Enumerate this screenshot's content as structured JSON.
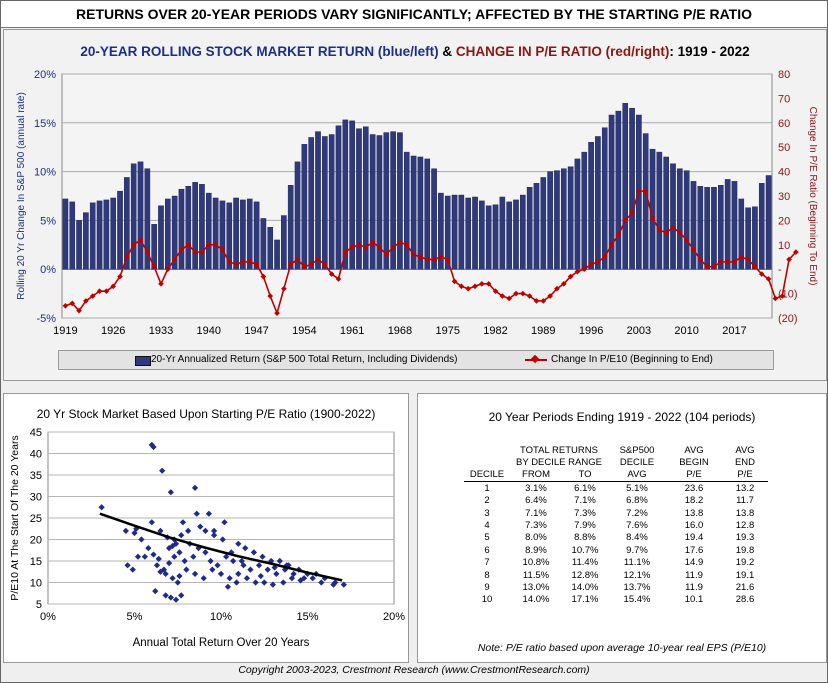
{
  "banner": "RETURNS OVER 20-YEAR PERIODS VARY SIGNIFICANTLY; AFFECTED BY THE STARTING P/E RATIO",
  "top_title": {
    "part1": "20-YEAR ROLLING STOCK MARKET RETURN (blue/left)",
    "amp": " & ",
    "part2": "CHANGE IN P/E RATIO (red/right)",
    "part3": ": 1919 - 2022"
  },
  "colors": {
    "bar": "#2f3a7e",
    "line": "#c00000",
    "scatter": "#1f2a8a",
    "trend": "#000000",
    "title_blue": "#1d2e8a",
    "title_red": "#8e1414"
  },
  "legend": {
    "bar_label": "20-Yr Annualized Return (S&P 500 Total Return, Including Dividends)",
    "line_label": "Change In P/E10 (Beginning to End)"
  },
  "chart_data": [
    {
      "type": "bar+line",
      "title": "20-YEAR ROLLING STOCK MARKET RETURN (blue/left) & CHANGE IN P/E RATIO (red/right): 1919 - 2022",
      "ylabel": "Rolling 20 Yr Change In S&P 500 (annual rate)",
      "y2label": "Change In P/E Ratio (Beginning To End)",
      "ylim": [
        -5,
        20
      ],
      "y2lim": [
        -20,
        80
      ],
      "yticks": [
        "-5%",
        "0%",
        "5%",
        "10%",
        "15%",
        "20%"
      ],
      "y2ticks": [
        "(20)",
        "(10)",
        "-",
        "10",
        "20",
        "30",
        "40",
        "50",
        "60",
        "70",
        "80"
      ],
      "xticks": [
        "1919",
        "1926",
        "1933",
        "1940",
        "1947",
        "1954",
        "1961",
        "1968",
        "1975",
        "1982",
        "1989",
        "1996",
        "2003",
        "2010",
        "2017"
      ],
      "x_start": 1919,
      "x_end": 2022,
      "series": [
        {
          "name": "20-Yr Annualized Return (S&P 500 Total Return, Including Dividends)",
          "kind": "bar",
          "values": [
            7.2,
            6.9,
            5.0,
            5.8,
            6.8,
            7.0,
            7.1,
            7.3,
            8.0,
            9.4,
            10.8,
            11.0,
            10.3,
            4.6,
            6.5,
            7.2,
            7.5,
            8.2,
            8.5,
            8.9,
            8.7,
            7.8,
            7.3,
            7.0,
            6.8,
            7.3,
            7.1,
            7.2,
            6.9,
            5.2,
            4.3,
            3.0,
            5.5,
            8.6,
            11.0,
            12.8,
            13.5,
            14.1,
            13.6,
            13.8,
            14.7,
            15.3,
            15.2,
            14.4,
            14.6,
            13.8,
            13.7,
            14.0,
            14.1,
            14.0,
            12.0,
            11.6,
            11.5,
            11.3,
            10.3,
            7.8,
            7.5,
            7.6,
            7.6,
            7.3,
            7.4,
            7.0,
            6.5,
            6.6,
            7.4,
            6.9,
            7.1,
            7.6,
            8.4,
            8.8,
            9.4,
            10.0,
            10.1,
            10.3,
            10.5,
            11.3,
            12.0,
            13.0,
            13.6,
            14.5,
            15.8,
            16.2,
            17.0,
            16.5,
            15.8,
            13.9,
            12.3,
            12.0,
            11.5,
            10.8,
            10.3,
            10.1,
            9.0,
            8.5,
            8.4,
            8.4,
            8.6,
            9.2,
            9.0,
            7.2,
            6.3,
            6.4,
            8.8,
            9.6
          ]
        },
        {
          "name": "Change In P/E10 (Beginning to End)",
          "kind": "line",
          "axis": "right",
          "values": [
            -15,
            -14,
            -17,
            -13,
            -11,
            -9,
            -9,
            -7,
            -3,
            5,
            10,
            12,
            7,
            1,
            -6,
            0,
            4,
            8,
            10,
            7,
            7,
            10,
            10,
            8,
            3,
            2,
            3,
            3,
            2,
            -3,
            -11,
            -18,
            -8,
            2,
            4,
            1,
            2,
            4,
            2,
            -2,
            -4,
            7,
            9,
            10,
            9,
            11,
            9,
            6,
            9,
            11,
            10,
            6,
            5,
            4,
            4,
            5,
            4,
            -5,
            -7,
            -8,
            -7,
            -6,
            -6,
            -9,
            -11,
            -12,
            -10,
            -10,
            -11,
            -13,
            -13,
            -11,
            -8,
            -6,
            -3,
            -1,
            0,
            2,
            3,
            5,
            10,
            14,
            20,
            23,
            32,
            32,
            21,
            16,
            15,
            17,
            15,
            12,
            8,
            4,
            1,
            1,
            3,
            3,
            3,
            5,
            4,
            1,
            -2,
            -4,
            -12,
            -11,
            4,
            7
          ]
        }
      ]
    },
    {
      "type": "scatter",
      "title": "20 Yr Stock Market Based Upon Starting P/E Ratio (1900-2022)",
      "xlabel": "Annual Total Return Over 20 Years",
      "ylabel": "P/E10 At The Start Of The 20 Years",
      "xlim": [
        0,
        20
      ],
      "ylim": [
        5,
        45
      ],
      "xticks": [
        "0%",
        "5%",
        "10%",
        "15%",
        "20%"
      ],
      "yticks": [
        "5",
        "10",
        "15",
        "20",
        "25",
        "30",
        "35",
        "40",
        "45"
      ],
      "points": [
        [
          3.1,
          27.5
        ],
        [
          4.5,
          22
        ],
        [
          5.0,
          21.5
        ],
        [
          5.4,
          20
        ],
        [
          5.1,
          22.5
        ],
        [
          6.0,
          42
        ],
        [
          6.1,
          41.5
        ],
        [
          6.6,
          36
        ],
        [
          7.1,
          31
        ],
        [
          8.5,
          32
        ],
        [
          9.3,
          26
        ],
        [
          6.0,
          24
        ],
        [
          6.5,
          22
        ],
        [
          7.3,
          20
        ],
        [
          7.0,
          18
        ],
        [
          7.7,
          21
        ],
        [
          8.2,
          19
        ],
        [
          8.8,
          23
        ],
        [
          9.1,
          22
        ],
        [
          9.6,
          21
        ],
        [
          10.1,
          20
        ],
        [
          10.6,
          17
        ],
        [
          11.0,
          19
        ],
        [
          11.4,
          18
        ],
        [
          11.9,
          17
        ],
        [
          12.4,
          16
        ],
        [
          12.9,
          15
        ],
        [
          13.4,
          15
        ],
        [
          13.9,
          14
        ],
        [
          14.5,
          13
        ],
        [
          15.0,
          12
        ],
        [
          15.5,
          12
        ],
        [
          16.0,
          11
        ],
        [
          16.6,
          10
        ],
        [
          17.1,
          9.5
        ],
        [
          4.6,
          14
        ],
        [
          5.2,
          16
        ],
        [
          6.3,
          14
        ],
        [
          6.8,
          12
        ],
        [
          7.2,
          11
        ],
        [
          7.5,
          10
        ],
        [
          8.0,
          13
        ],
        [
          8.5,
          12
        ],
        [
          9.0,
          11
        ],
        [
          9.5,
          13
        ],
        [
          10.0,
          12
        ],
        [
          10.5,
          11
        ],
        [
          11.0,
          12
        ],
        [
          11.5,
          11
        ],
        [
          12.0,
          10
        ],
        [
          12.5,
          10
        ],
        [
          13.0,
          9.5
        ],
        [
          13.6,
          10
        ],
        [
          14.1,
          11
        ],
        [
          14.6,
          10.5
        ],
        [
          6.2,
          8
        ],
        [
          6.8,
          7
        ],
        [
          7.1,
          6.5
        ],
        [
          7.4,
          6
        ],
        [
          7.7,
          7
        ],
        [
          5.8,
          18
        ],
        [
          6.1,
          16.5
        ],
        [
          6.4,
          15.5
        ],
        [
          6.7,
          13
        ],
        [
          7.0,
          14.5
        ],
        [
          7.3,
          16
        ],
        [
          7.6,
          17
        ],
        [
          7.9,
          15
        ],
        [
          8.4,
          16
        ],
        [
          8.7,
          18
        ],
        [
          9.1,
          17
        ],
        [
          9.4,
          15
        ],
        [
          9.8,
          14
        ],
        [
          10.3,
          16
        ],
        [
          10.7,
          15
        ],
        [
          11.3,
          14
        ],
        [
          11.7,
          13
        ],
        [
          12.2,
          14
        ],
        [
          12.7,
          13
        ],
        [
          13.2,
          12
        ],
        [
          13.7,
          13
        ],
        [
          14.2,
          12
        ],
        [
          14.8,
          11
        ],
        [
          15.3,
          11
        ],
        [
          15.8,
          10
        ],
        [
          16.5,
          9.5
        ],
        [
          10.4,
          9
        ],
        [
          10.9,
          10
        ],
        [
          8.6,
          26
        ],
        [
          9.6,
          22
        ],
        [
          10.2,
          24
        ],
        [
          7.8,
          24
        ],
        [
          7.2,
          18.5
        ],
        [
          7.4,
          19
        ],
        [
          8.1,
          22
        ],
        [
          11.2,
          15
        ],
        [
          12.3,
          11.5
        ],
        [
          13.1,
          13.5
        ],
        [
          6.9,
          20.5
        ],
        [
          7.6,
          11.5
        ],
        [
          6.5,
          12.5
        ],
        [
          5.6,
          16
        ],
        [
          4.9,
          13
        ],
        [
          13.8,
          14
        ]
      ],
      "trend": [
        [
          3,
          26
        ],
        [
          5,
          23.2
        ],
        [
          7,
          20.5
        ],
        [
          9,
          18.2
        ],
        [
          11,
          16.1
        ],
        [
          13,
          14.3
        ],
        [
          15,
          12.3
        ],
        [
          17,
          10.5
        ]
      ]
    }
  ],
  "table": {
    "title": "20 Year Periods Ending 1919 - 2022 (104 periods)",
    "hdr_total_returns": "TOTAL RETURNS",
    "hdr_by_decile_range": "BY DECILE RANGE",
    "hdr_sp500": "S&P500",
    "hdr_decile2": "DECILE",
    "hdr_avg1": "AVG",
    "hdr_begin": "BEGIN",
    "hdr_avg2": "AVG",
    "hdr_end": "END",
    "col_decile": "DECILE",
    "col_from": "FROM",
    "col_to": "TO",
    "col_avg": "AVG",
    "col_pe1": "P/E",
    "col_pe2": "P/E",
    "rows": [
      [
        "1",
        "3.1%",
        "6.1%",
        "5.1%",
        "23.6",
        "13.2"
      ],
      [
        "2",
        "6.4%",
        "7.1%",
        "6.8%",
        "18.2",
        "11.7"
      ],
      [
        "3",
        "7.1%",
        "7.3%",
        "7.2%",
        "13.8",
        "13.8"
      ],
      [
        "4",
        "7.3%",
        "7.9%",
        "7.6%",
        "16.0",
        "12.8"
      ],
      [
        "5",
        "8.0%",
        "8.8%",
        "8.4%",
        "19.4",
        "19.3"
      ],
      [
        "6",
        "8.9%",
        "10.7%",
        "9.7%",
        "17.6",
        "19.8"
      ],
      [
        "7",
        "10.8%",
        "11.4%",
        "11.1%",
        "14.9",
        "19.2"
      ],
      [
        "8",
        "11.5%",
        "12.8%",
        "12.1%",
        "11.9",
        "19.1"
      ],
      [
        "9",
        "13.0%",
        "14.0%",
        "13.7%",
        "11.9",
        "21.6"
      ],
      [
        "10",
        "14.0%",
        "17.1%",
        "15.4%",
        "10.1",
        "28.6"
      ]
    ],
    "note": "Note: P/E ratio based upon average 10-year real EPS (P/E10)"
  },
  "copyright": "Copyright 2003-2023, Crestmont Research (www.CrestmontResearch.com)"
}
